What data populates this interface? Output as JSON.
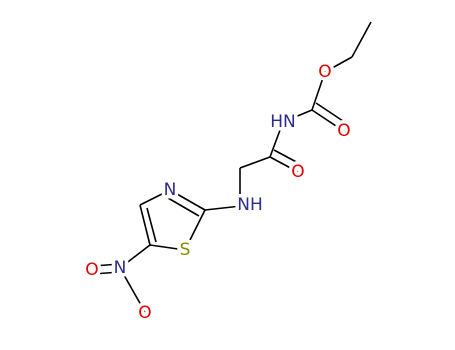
{
  "molecule": {
    "atoms": [
      {
        "label": "O"
      },
      {
        "label": "O"
      },
      {
        "label": "HN"
      },
      {
        "label": "O"
      },
      {
        "label": "N"
      },
      {
        "label": "NH"
      },
      {
        "label": "S"
      },
      {
        "label": "N"
      },
      {
        "label": "O"
      },
      {
        "label": "O"
      }
    ]
  }
}
